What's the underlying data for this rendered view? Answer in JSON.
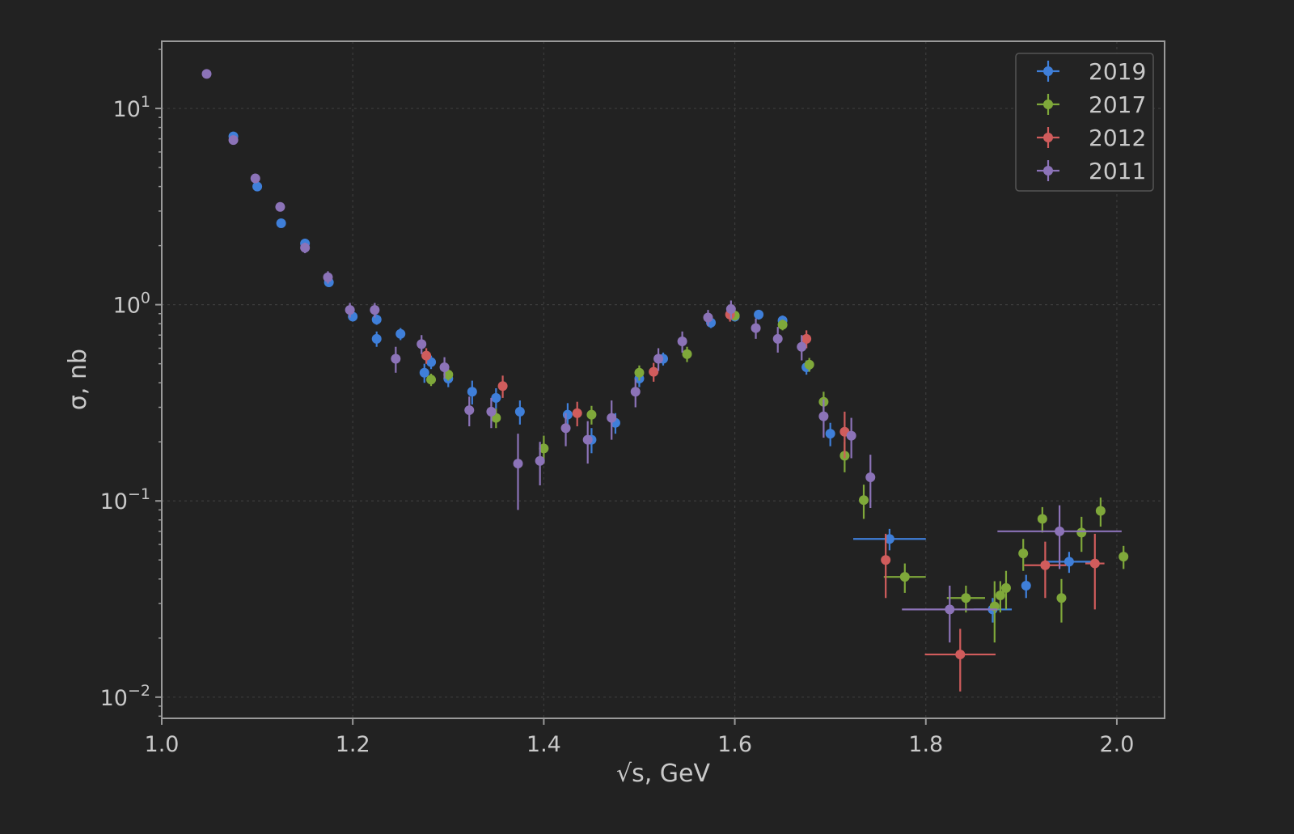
{
  "chart_data": {
    "type": "scatter",
    "xlabel": "√s, GeV",
    "ylabel": "σ, nb",
    "xlim": [
      1.0,
      2.05
    ],
    "ylim": [
      0.0078,
      22
    ],
    "yscale": "log",
    "grid": true,
    "legend_position": "top-right",
    "x_ticks": [
      {
        "value": 1.0,
        "label": "1.0"
      },
      {
        "value": 1.2,
        "label": "1.2"
      },
      {
        "value": 1.4,
        "label": "1.4"
      },
      {
        "value": 1.6,
        "label": "1.6"
      },
      {
        "value": 1.8,
        "label": "1.8"
      },
      {
        "value": 2.0,
        "label": "2.0"
      }
    ],
    "y_ticks": [
      {
        "value": 10,
        "base": "10",
        "exp": "1"
      },
      {
        "value": 1,
        "base": "10",
        "exp": "0"
      },
      {
        "value": 0.1,
        "base": "10",
        "exp": "−1"
      },
      {
        "value": 0.01,
        "base": "10",
        "exp": "−2"
      }
    ],
    "series": [
      {
        "name": "2019",
        "color": "#3f7fd9",
        "points": [
          {
            "x": 1.075,
            "y": 7.2,
            "ylo": 0.2,
            "yhi": 0.2,
            "xerr": 0
          },
          {
            "x": 1.1,
            "y": 4.0,
            "ylo": 0.15,
            "yhi": 0.15,
            "xerr": 0
          },
          {
            "x": 1.125,
            "y": 2.6,
            "ylo": 0.1,
            "yhi": 0.1,
            "xerr": 0
          },
          {
            "x": 1.15,
            "y": 2.05,
            "ylo": 0.08,
            "yhi": 0.08,
            "xerr": 0
          },
          {
            "x": 1.175,
            "y": 1.3,
            "ylo": 0.06,
            "yhi": 0.06,
            "xerr": 0
          },
          {
            "x": 1.2,
            "y": 0.87,
            "ylo": 0.05,
            "yhi": 0.05,
            "xerr": 0
          },
          {
            "x": 1.225,
            "y": 0.84,
            "ylo": 0.05,
            "yhi": 0.05,
            "xerr": 0
          },
          {
            "x": 1.225,
            "y": 0.67,
            "ylo": 0.06,
            "yhi": 0.06,
            "xerr": 0
          },
          {
            "x": 1.25,
            "y": 0.71,
            "ylo": 0.05,
            "yhi": 0.05,
            "xerr": 0
          },
          {
            "x": 1.275,
            "y": 0.45,
            "ylo": 0.05,
            "yhi": 0.05,
            "xerr": 0
          },
          {
            "x": 1.282,
            "y": 0.51,
            "ylo": 0.04,
            "yhi": 0.04,
            "xerr": 0
          },
          {
            "x": 1.3,
            "y": 0.42,
            "ylo": 0.04,
            "yhi": 0.04,
            "xerr": 0
          },
          {
            "x": 1.325,
            "y": 0.36,
            "ylo": 0.05,
            "yhi": 0.05,
            "xerr": 0
          },
          {
            "x": 1.35,
            "y": 0.335,
            "ylo": 0.04,
            "yhi": 0.04,
            "xerr": 0
          },
          {
            "x": 1.375,
            "y": 0.285,
            "ylo": 0.04,
            "yhi": 0.04,
            "xerr": 0
          },
          {
            "x": 1.425,
            "y": 0.275,
            "ylo": 0.04,
            "yhi": 0.04,
            "xerr": 0
          },
          {
            "x": 1.45,
            "y": 0.205,
            "ylo": 0.03,
            "yhi": 0.03,
            "xerr": 0
          },
          {
            "x": 1.475,
            "y": 0.25,
            "ylo": 0.03,
            "yhi": 0.03,
            "xerr": 0
          },
          {
            "x": 1.5,
            "y": 0.42,
            "ylo": 0.04,
            "yhi": 0.04,
            "xerr": 0
          },
          {
            "x": 1.525,
            "y": 0.53,
            "ylo": 0.04,
            "yhi": 0.04,
            "xerr": 0
          },
          {
            "x": 1.575,
            "y": 0.81,
            "ylo": 0.05,
            "yhi": 0.05,
            "xerr": 0
          },
          {
            "x": 1.6,
            "y": 0.87,
            "ylo": 0.05,
            "yhi": 0.05,
            "xerr": 0
          },
          {
            "x": 1.625,
            "y": 0.89,
            "ylo": 0.05,
            "yhi": 0.05,
            "xerr": 0
          },
          {
            "x": 1.65,
            "y": 0.83,
            "ylo": 0.05,
            "yhi": 0.05,
            "xerr": 0
          },
          {
            "x": 1.675,
            "y": 0.48,
            "ylo": 0.04,
            "yhi": 0.04,
            "xerr": 0
          },
          {
            "x": 1.7,
            "y": 0.22,
            "ylo": 0.03,
            "yhi": 0.03,
            "xerr": 0
          },
          {
            "x": 1.762,
            "y": 0.064,
            "ylo": 0.008,
            "yhi": 0.008,
            "xerr": 0.038
          },
          {
            "x": 1.87,
            "y": 0.028,
            "ylo": 0.004,
            "yhi": 0.004,
            "xerr": 0.02
          },
          {
            "x": 1.905,
            "y": 0.037,
            "ylo": 0.005,
            "yhi": 0.005,
            "xerr": 0
          },
          {
            "x": 1.95,
            "y": 0.049,
            "ylo": 0.006,
            "yhi": 0.006,
            "xerr": 0.025
          }
        ]
      },
      {
        "name": "2017",
        "color": "#7fa83a",
        "points": [
          {
            "x": 1.282,
            "y": 0.415,
            "ylo": 0.03,
            "yhi": 0.03,
            "xerr": 0
          },
          {
            "x": 1.3,
            "y": 0.44,
            "ylo": 0.03,
            "yhi": 0.03,
            "xerr": 0
          },
          {
            "x": 1.35,
            "y": 0.265,
            "ylo": 0.03,
            "yhi": 0.03,
            "xerr": 0
          },
          {
            "x": 1.4,
            "y": 0.185,
            "ylo": 0.03,
            "yhi": 0.03,
            "xerr": 0
          },
          {
            "x": 1.45,
            "y": 0.275,
            "ylo": 0.03,
            "yhi": 0.03,
            "xerr": 0
          },
          {
            "x": 1.5,
            "y": 0.45,
            "ylo": 0.04,
            "yhi": 0.04,
            "xerr": 0
          },
          {
            "x": 1.55,
            "y": 0.56,
            "ylo": 0.05,
            "yhi": 0.05,
            "xerr": 0
          },
          {
            "x": 1.6,
            "y": 0.88,
            "ylo": 0.05,
            "yhi": 0.05,
            "xerr": 0
          },
          {
            "x": 1.65,
            "y": 0.79,
            "ylo": 0.05,
            "yhi": 0.05,
            "xerr": 0
          },
          {
            "x": 1.678,
            "y": 0.495,
            "ylo": 0.04,
            "yhi": 0.04,
            "xerr": 0
          },
          {
            "x": 1.693,
            "y": 0.32,
            "ylo": 0.04,
            "yhi": 0.04,
            "xerr": 0
          },
          {
            "x": 1.715,
            "y": 0.17,
            "ylo": 0.03,
            "yhi": 0.03,
            "xerr": 0
          },
          {
            "x": 1.735,
            "y": 0.101,
            "ylo": 0.02,
            "yhi": 0.02,
            "xerr": 0
          },
          {
            "x": 1.778,
            "y": 0.041,
            "ylo": 0.007,
            "yhi": 0.007,
            "xerr": 0.022
          },
          {
            "x": 1.842,
            "y": 0.032,
            "ylo": 0.005,
            "yhi": 0.005,
            "xerr": 0.02
          },
          {
            "x": 1.872,
            "y": 0.029,
            "ylo": 0.01,
            "yhi": 0.01,
            "xerr": 0
          },
          {
            "x": 1.878,
            "y": 0.033,
            "ylo": 0.006,
            "yhi": 0.006,
            "xerr": 0
          },
          {
            "x": 1.884,
            "y": 0.036,
            "ylo": 0.008,
            "yhi": 0.008,
            "xerr": 0
          },
          {
            "x": 1.902,
            "y": 0.054,
            "ylo": 0.01,
            "yhi": 0.01,
            "xerr": 0
          },
          {
            "x": 1.922,
            "y": 0.081,
            "ylo": 0.012,
            "yhi": 0.012,
            "xerr": 0
          },
          {
            "x": 1.942,
            "y": 0.032,
            "ylo": 0.008,
            "yhi": 0.008,
            "xerr": 0
          },
          {
            "x": 1.963,
            "y": 0.069,
            "ylo": 0.014,
            "yhi": 0.014,
            "xerr": 0
          },
          {
            "x": 1.983,
            "y": 0.089,
            "ylo": 0.015,
            "yhi": 0.015,
            "xerr": 0
          },
          {
            "x": 2.007,
            "y": 0.052,
            "ylo": 0.007,
            "yhi": 0.007,
            "xerr": 0
          }
        ]
      },
      {
        "name": "2012",
        "color": "#d05c5c",
        "points": [
          {
            "x": 1.277,
            "y": 0.55,
            "ylo": 0.05,
            "yhi": 0.05,
            "xerr": 0
          },
          {
            "x": 1.357,
            "y": 0.385,
            "ylo": 0.05,
            "yhi": 0.05,
            "xerr": 0
          },
          {
            "x": 1.435,
            "y": 0.28,
            "ylo": 0.04,
            "yhi": 0.04,
            "xerr": 0
          },
          {
            "x": 1.515,
            "y": 0.455,
            "ylo": 0.05,
            "yhi": 0.05,
            "xerr": 0
          },
          {
            "x": 1.595,
            "y": 0.89,
            "ylo": 0.07,
            "yhi": 0.07,
            "xerr": 0
          },
          {
            "x": 1.675,
            "y": 0.67,
            "ylo": 0.07,
            "yhi": 0.07,
            "xerr": 0
          },
          {
            "x": 1.715,
            "y": 0.225,
            "ylo": 0.06,
            "yhi": 0.06,
            "xerr": 0
          },
          {
            "x": 1.758,
            "y": 0.05,
            "ylo": 0.018,
            "yhi": 0.018,
            "xerr": 0
          },
          {
            "x": 1.836,
            "y": 0.0165,
            "ylo": 0.0058,
            "yhi": 0.0058,
            "xerr": 0.037
          },
          {
            "x": 1.925,
            "y": 0.047,
            "ylo": 0.015,
            "yhi": 0.015,
            "xerr": 0.022
          },
          {
            "x": 1.977,
            "y": 0.048,
            "ylo": 0.02,
            "yhi": 0.02,
            "xerr": 0.01
          }
        ]
      },
      {
        "name": "2011",
        "color": "#8c73b8",
        "points": [
          {
            "x": 1.047,
            "y": 15.0,
            "ylo": 0.5,
            "yhi": 0.5,
            "xerr": 0
          },
          {
            "x": 1.075,
            "y": 6.9,
            "ylo": 0.2,
            "yhi": 0.2,
            "xerr": 0
          },
          {
            "x": 1.098,
            "y": 4.4,
            "ylo": 0.15,
            "yhi": 0.15,
            "xerr": 0
          },
          {
            "x": 1.124,
            "y": 3.15,
            "ylo": 0.12,
            "yhi": 0.12,
            "xerr": 0
          },
          {
            "x": 1.15,
            "y": 1.95,
            "ylo": 0.12,
            "yhi": 0.12,
            "xerr": 0
          },
          {
            "x": 1.174,
            "y": 1.38,
            "ylo": 0.1,
            "yhi": 0.1,
            "xerr": 0
          },
          {
            "x": 1.197,
            "y": 0.94,
            "ylo": 0.08,
            "yhi": 0.08,
            "xerr": 0
          },
          {
            "x": 1.223,
            "y": 0.94,
            "ylo": 0.08,
            "yhi": 0.08,
            "xerr": 0
          },
          {
            "x": 1.245,
            "y": 0.53,
            "ylo": 0.08,
            "yhi": 0.08,
            "xerr": 0
          },
          {
            "x": 1.272,
            "y": 0.63,
            "ylo": 0.07,
            "yhi": 0.07,
            "xerr": 0
          },
          {
            "x": 1.296,
            "y": 0.48,
            "ylo": 0.06,
            "yhi": 0.06,
            "xerr": 0
          },
          {
            "x": 1.322,
            "y": 0.29,
            "ylo": 0.05,
            "yhi": 0.05,
            "xerr": 0
          },
          {
            "x": 1.345,
            "y": 0.285,
            "ylo": 0.05,
            "yhi": 0.05,
            "xerr": 0
          },
          {
            "x": 1.373,
            "y": 0.155,
            "ylo": 0.065,
            "yhi": 0.065,
            "xerr": 0
          },
          {
            "x": 1.396,
            "y": 0.16,
            "ylo": 0.04,
            "yhi": 0.04,
            "xerr": 0
          },
          {
            "x": 1.423,
            "y": 0.235,
            "ylo": 0.045,
            "yhi": 0.045,
            "xerr": 0
          },
          {
            "x": 1.446,
            "y": 0.205,
            "ylo": 0.05,
            "yhi": 0.05,
            "xerr": 0
          },
          {
            "x": 1.471,
            "y": 0.265,
            "ylo": 0.06,
            "yhi": 0.06,
            "xerr": 0
          },
          {
            "x": 1.496,
            "y": 0.36,
            "ylo": 0.06,
            "yhi": 0.06,
            "xerr": 0
          },
          {
            "x": 1.52,
            "y": 0.53,
            "ylo": 0.07,
            "yhi": 0.07,
            "xerr": 0
          },
          {
            "x": 1.545,
            "y": 0.65,
            "ylo": 0.08,
            "yhi": 0.08,
            "xerr": 0
          },
          {
            "x": 1.572,
            "y": 0.86,
            "ylo": 0.08,
            "yhi": 0.08,
            "xerr": 0
          },
          {
            "x": 1.596,
            "y": 0.95,
            "ylo": 0.1,
            "yhi": 0.1,
            "xerr": 0
          },
          {
            "x": 1.622,
            "y": 0.76,
            "ylo": 0.09,
            "yhi": 0.09,
            "xerr": 0
          },
          {
            "x": 1.645,
            "y": 0.67,
            "ylo": 0.1,
            "yhi": 0.1,
            "xerr": 0
          },
          {
            "x": 1.67,
            "y": 0.61,
            "ylo": 0.09,
            "yhi": 0.09,
            "xerr": 0
          },
          {
            "x": 1.693,
            "y": 0.27,
            "ylo": 0.06,
            "yhi": 0.06,
            "xerr": 0
          },
          {
            "x": 1.722,
            "y": 0.215,
            "ylo": 0.05,
            "yhi": 0.05,
            "xerr": 0
          },
          {
            "x": 1.742,
            "y": 0.132,
            "ylo": 0.04,
            "yhi": 0.04,
            "xerr": 0
          },
          {
            "x": 1.825,
            "y": 0.028,
            "ylo": 0.009,
            "yhi": 0.009,
            "xerr": 0.05
          },
          {
            "x": 1.94,
            "y": 0.07,
            "ylo": 0.025,
            "yhi": 0.025,
            "xerr": 0.065
          }
        ]
      }
    ]
  }
}
